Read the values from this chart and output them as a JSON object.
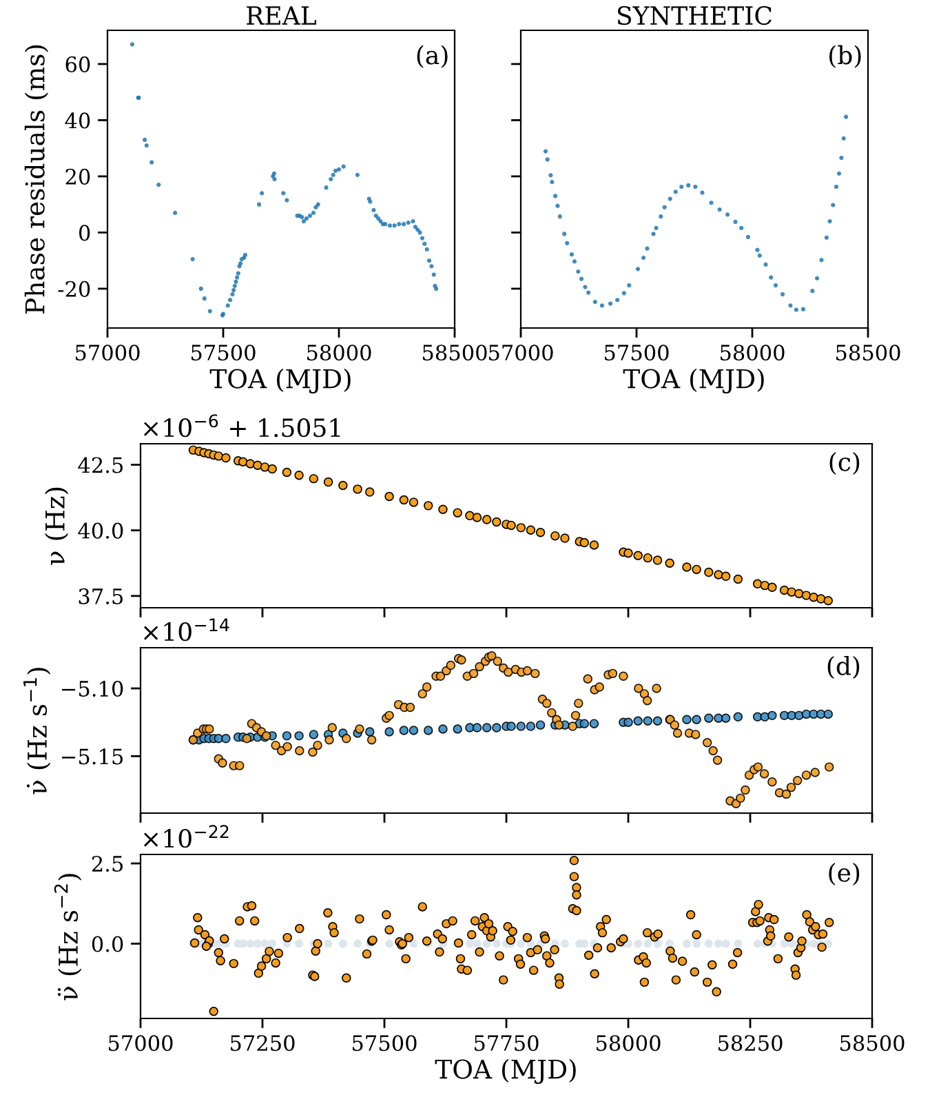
{
  "chart_data": [
    {
      "type": "scatter",
      "title": "REAL",
      "xlabel": "TOA (MJD)",
      "ylabel": "Phase residuals (ms)",
      "marker": "circle",
      "annotations": [
        "(a)"
      ],
      "xlim": [
        57000,
        58500
      ],
      "xticks": [
        57000,
        57500,
        58000,
        58500
      ],
      "ylim": [
        -34,
        72
      ],
      "yticks": [
        -20,
        0,
        20,
        40,
        60
      ],
      "series": [
        {
          "color": "#1f77b4",
          "x": [
            57107,
            57133,
            57135,
            57161,
            57169,
            57191,
            57221,
            57292,
            57368,
            57404,
            57419,
            57443,
            57497,
            57500,
            57520,
            57530,
            57540,
            57545,
            57550,
            57555,
            57560,
            57565,
            57570,
            57575,
            57580,
            57590,
            57595,
            57655,
            57667,
            57715,
            57720,
            57722,
            57760,
            57775,
            57820,
            57830,
            57840,
            57848,
            57860,
            57875,
            57890,
            57900,
            57910,
            57945,
            57965,
            57975,
            57985,
            58000,
            58020,
            58080,
            58130,
            58135,
            58150,
            58160,
            58170,
            58180,
            58190,
            58200,
            58220,
            58240,
            58260,
            58280,
            58300,
            58320,
            58330,
            58340,
            58350,
            58360,
            58370,
            58380,
            58390,
            58400,
            58410,
            58415,
            58420
          ],
          "values": [
            67,
            48,
            48,
            33,
            31,
            25,
            17,
            7,
            -9.5,
            -20,
            -23.5,
            -28,
            -29.5,
            -29,
            -26,
            -24,
            -22,
            -20.5,
            -19,
            -17.5,
            -16,
            -14.5,
            -12,
            -11,
            -9.5,
            -9,
            -8,
            10,
            14,
            20,
            21,
            19,
            14,
            11.5,
            6,
            6,
            5.5,
            4,
            5,
            6,
            7,
            9,
            10,
            16,
            19,
            20.5,
            22,
            22.5,
            23.5,
            20.5,
            12,
            11,
            8,
            6,
            5,
            4,
            3,
            3,
            2.5,
            2.5,
            3,
            3,
            3.5,
            4,
            2,
            1,
            0,
            -2,
            -4,
            -6,
            -10,
            -12,
            -15,
            -19,
            -20
          ]
        }
      ]
    },
    {
      "type": "scatter",
      "title": "SYNTHETIC",
      "xlabel": "TOA (MJD)",
      "marker": "circle",
      "annotations": [
        "(b)"
      ],
      "tick_labels": "x",
      "xlim": [
        57000,
        58500
      ],
      "xticks": [
        57000,
        57500,
        58000,
        58500
      ],
      "ylim": [
        -34,
        72
      ],
      "yticks": [
        -20,
        0,
        20,
        40,
        60
      ],
      "series": [
        {
          "color": "#1f77b4",
          "x": [
            57107,
            57115,
            57129,
            57135,
            57149,
            57159,
            57169,
            57188,
            57200,
            57220,
            57232,
            57248,
            57262,
            57278,
            57292,
            57321,
            57351,
            57387,
            57417,
            57446,
            57468,
            57506,
            57530,
            57546,
            57573,
            57585,
            57605,
            57621,
            57645,
            57669,
            57694,
            57724,
            57754,
            57784,
            57823,
            57859,
            57893,
            57927,
            57953,
            57982,
            58022,
            58032,
            58058,
            58081,
            58101,
            58131,
            58165,
            58190,
            58220,
            58260,
            58280,
            58299,
            58321,
            58335,
            58349,
            58363,
            58375,
            58385,
            58395,
            58405
          ],
          "values": [
            28.9,
            26,
            20.4,
            18,
            13,
            9.5,
            5.7,
            -0.5,
            -3.8,
            -7.8,
            -10.3,
            -13.9,
            -16.5,
            -19.4,
            -21.4,
            -24.7,
            -26,
            -25.3,
            -24,
            -21.6,
            -18.8,
            -13,
            -9,
            -5.7,
            -0.5,
            1.6,
            5.7,
            9,
            12,
            14.5,
            16.3,
            16.8,
            16.3,
            14.2,
            10.6,
            8.2,
            6.4,
            3.8,
            1.6,
            -1.6,
            -6.2,
            -8.2,
            -11.4,
            -16,
            -18.8,
            -22,
            -26,
            -27.5,
            -27.3,
            -20.8,
            -16.3,
            -9.8,
            -1.8,
            4,
            9.8,
            16.3,
            21,
            26.6,
            33.5,
            41.2
          ]
        }
      ]
    },
    {
      "type": "scatter",
      "ylabel": "ν (Hz)",
      "marker": "circle",
      "annotations": [
        "(c)",
        "×10$^{−6}$ + 1.5051"
      ],
      "tick_labels": "y",
      "xlim": [
        57000,
        58500
      ],
      "xticks": [
        57000,
        57250,
        57500,
        57750,
        58000,
        58250,
        58500
      ],
      "ylim": [
        37.05,
        43.3
      ],
      "yticks": [
        {
          "value": 37.5,
          "label": "37.5"
        },
        {
          "value": 40,
          "label": "40.0"
        },
        {
          "value": 42.5,
          "label": "42.5"
        }
      ],
      "series": [
        {
          "color": "#f5a01a",
          "x": [
            57108,
            57120,
            57130,
            57140,
            57150,
            57160,
            57175,
            57200,
            57210,
            57225,
            57240,
            57255,
            57270,
            57300,
            57325,
            57355,
            57385,
            57415,
            57445,
            57470,
            57510,
            57540,
            57560,
            57590,
            57620,
            57650,
            57675,
            57690,
            57710,
            57730,
            57750,
            57760,
            57780,
            57800,
            57820,
            57850,
            57870,
            57900,
            57910,
            57930,
            57990,
            58000,
            58020,
            58040,
            58060,
            58085,
            58120,
            58140,
            58165,
            58185,
            58200,
            58225,
            58265,
            58280,
            58295,
            58320,
            58335,
            58350,
            58365,
            58380,
            58395,
            58410
          ],
          "values": [
            43.06,
            43.01,
            42.96,
            42.92,
            42.87,
            42.83,
            42.76,
            42.65,
            42.61,
            42.54,
            42.48,
            42.41,
            42.34,
            42.21,
            42.1,
            41.97,
            41.84,
            41.71,
            41.57,
            41.46,
            41.29,
            41.16,
            41.07,
            40.94,
            40.8,
            40.67,
            40.56,
            40.49,
            40.41,
            40.32,
            40.23,
            40.19,
            40.1,
            40.01,
            39.92,
            39.79,
            39.7,
            39.57,
            39.53,
            39.44,
            39.17,
            39.13,
            39.04,
            38.95,
            38.86,
            38.75,
            38.6,
            38.51,
            38.4,
            38.31,
            38.25,
            38.14,
            37.96,
            37.9,
            37.83,
            37.72,
            37.65,
            37.59,
            37.52,
            37.45,
            37.39,
            37.32
          ]
        }
      ]
    },
    {
      "type": "scatter",
      "ylabel": "ν̇ (Hz s$^{−1}$)",
      "marker": "circle",
      "annotations": [
        "(d)",
        "×10$^{−14}$"
      ],
      "tick_labels": "y",
      "xlim": [
        57000,
        58500
      ],
      "xticks": [
        57000,
        57250,
        57500,
        57750,
        58000,
        58250,
        58500
      ],
      "ylim": [
        -5.192,
        -5.07
      ],
      "yticks": [
        {
          "value": -5.15,
          "label": "−5.15"
        },
        {
          "value": -5.1,
          "label": "−5.10"
        }
      ],
      "series": [
        {
          "color": "#3a8dc4",
          "x": [
            57108,
            57120,
            57130,
            57140,
            57150,
            57160,
            57175,
            57200,
            57210,
            57225,
            57240,
            57255,
            57270,
            57300,
            57325,
            57355,
            57385,
            57415,
            57445,
            57470,
            57510,
            57540,
            57560,
            57590,
            57620,
            57650,
            57675,
            57690,
            57710,
            57730,
            57750,
            57760,
            57780,
            57800,
            57820,
            57850,
            57870,
            57900,
            57910,
            57930,
            57990,
            58000,
            58020,
            58040,
            58060,
            58085,
            58120,
            58140,
            58165,
            58185,
            58200,
            58225,
            58265,
            58280,
            58295,
            58320,
            58335,
            58350,
            58365,
            58380,
            58395,
            58410
          ],
          "values": [
            -5.138,
            -5.138,
            -5.137,
            -5.137,
            -5.137,
            -5.137,
            -5.137,
            -5.136,
            -5.136,
            -5.136,
            -5.136,
            -5.136,
            -5.135,
            -5.135,
            -5.135,
            -5.134,
            -5.134,
            -5.133,
            -5.133,
            -5.132,
            -5.132,
            -5.131,
            -5.131,
            -5.131,
            -5.13,
            -5.13,
            -5.129,
            -5.129,
            -5.129,
            -5.129,
            -5.128,
            -5.128,
            -5.128,
            -5.128,
            -5.127,
            -5.127,
            -5.127,
            -5.126,
            -5.126,
            -5.126,
            -5.125,
            -5.125,
            -5.124,
            -5.124,
            -5.124,
            -5.123,
            -5.123,
            -5.123,
            -5.122,
            -5.122,
            -5.122,
            -5.121,
            -5.121,
            -5.121,
            -5.12,
            -5.12,
            -5.12,
            -5.12,
            -5.119,
            -5.119,
            -5.119,
            -5.119
          ]
        },
        {
          "color": "#f39c1e",
          "x": [
            57108,
            57117,
            57129,
            57135,
            57141,
            57160,
            57168,
            57191,
            57203,
            57218,
            57228,
            57238,
            57248,
            57258,
            57277,
            57289,
            57301,
            57326,
            57353,
            57363,
            57387,
            57393,
            57422,
            57449,
            57474,
            57504,
            57510,
            57529,
            57541,
            57553,
            57578,
            57587,
            57606,
            57615,
            57627,
            57636,
            57652,
            57658,
            57670,
            57683,
            57695,
            57707,
            57714,
            57720,
            57732,
            57744,
            57754,
            57769,
            57781,
            57793,
            57809,
            57824,
            57833,
            57843,
            57853,
            57858,
            57886,
            57892,
            57898,
            57917,
            57931,
            57941,
            57959,
            57968,
            57990,
            58021,
            58033,
            58039,
            58058,
            58086,
            58095,
            58101,
            58125,
            58138,
            58162,
            58174,
            58183,
            58209,
            58221,
            58230,
            58240,
            58248,
            58258,
            58266,
            58279,
            58295,
            58310,
            58324,
            58334,
            58347,
            58365,
            58383,
            58412
          ],
          "values": [
            -5.138,
            -5.133,
            -5.13,
            -5.13,
            -5.13,
            -5.152,
            -5.155,
            -5.157,
            -5.157,
            -5.137,
            -5.126,
            -5.129,
            -5.132,
            -5.135,
            -5.142,
            -5.146,
            -5.143,
            -5.146,
            -5.147,
            -5.142,
            -5.138,
            -5.129,
            -5.137,
            -5.13,
            -5.138,
            -5.122,
            -5.12,
            -5.112,
            -5.114,
            -5.114,
            -5.104,
            -5.099,
            -5.091,
            -5.091,
            -5.087,
            -5.083,
            -5.078,
            -5.079,
            -5.091,
            -5.089,
            -5.084,
            -5.08,
            -5.077,
            -5.076,
            -5.08,
            -5.085,
            -5.088,
            -5.086,
            -5.088,
            -5.087,
            -5.089,
            -5.108,
            -5.111,
            -5.118,
            -5.123,
            -5.127,
            -5.128,
            -5.12,
            -5.111,
            -5.093,
            -5.101,
            -5.099,
            -5.09,
            -5.089,
            -5.091,
            -5.1,
            -5.104,
            -5.109,
            -5.1,
            -5.123,
            -5.127,
            -5.133,
            -5.133,
            -5.134,
            -5.14,
            -5.146,
            -5.153,
            -5.183,
            -5.185,
            -5.181,
            -5.175,
            -5.164,
            -5.16,
            -5.158,
            -5.163,
            -5.169,
            -5.177,
            -5.178,
            -5.173,
            -5.168,
            -5.164,
            -5.162,
            -5.158
          ]
        }
      ]
    },
    {
      "type": "scatter",
      "xlabel": "TOA (MJD)",
      "ylabel": "ν̈ (Hz s$^{−2}$)",
      "marker": "circle",
      "annotations": [
        "(e)",
        "×10$^{−22}$"
      ],
      "xlim": [
        57000,
        58500
      ],
      "xticks": [
        57000,
        57250,
        57500,
        57750,
        58000,
        58250,
        58500
      ],
      "ylim": [
        -2.33,
        2.78
      ],
      "yticks": [
        {
          "value": 0,
          "label": "0.0"
        },
        {
          "value": 2.5,
          "label": "2.5"
        }
      ],
      "series": [
        {
          "color": "#dce5ec",
          "x": [
            57108,
            57120,
            57130,
            57150,
            57160,
            57175,
            57200,
            57210,
            57225,
            57240,
            57255,
            57270,
            57300,
            57325,
            57355,
            57385,
            57415,
            57445,
            57470,
            57510,
            57540,
            57560,
            57590,
            57620,
            57650,
            57675,
            57690,
            57710,
            57730,
            57750,
            57760,
            57780,
            57800,
            57820,
            57850,
            57870,
            57900,
            57910,
            57930,
            57990,
            58000,
            58020,
            58040,
            58060,
            58085,
            58120,
            58140,
            58165,
            58185,
            58200,
            58225,
            58265,
            58280,
            58295,
            58320,
            58335,
            58350,
            58365,
            58380,
            58395,
            58410
          ],
          "values": [
            0,
            0,
            0,
            0,
            0,
            0,
            0,
            0,
            0,
            0,
            0,
            0,
            0,
            0,
            0,
            0,
            0,
            0,
            0,
            0,
            0,
            0,
            0,
            0,
            0,
            0,
            0,
            0,
            0,
            0,
            0,
            0,
            0,
            0,
            0,
            0,
            0,
            0,
            0,
            0,
            0,
            0,
            0,
            0,
            0,
            0,
            0,
            0,
            0,
            0,
            0,
            0,
            0,
            0,
            0,
            0,
            0,
            0,
            0,
            0,
            0
          ]
        },
        {
          "color": "#f39c1e",
          "x": [
            57111,
            57117,
            57119,
            57132,
            57139,
            57141,
            57135,
            57150,
            57160,
            57164,
            57172,
            57191,
            57203,
            57219,
            57228,
            57234,
            57242,
            57248,
            57258,
            57264,
            57277,
            57283,
            57301,
            57326,
            57353,
            57357,
            57359,
            57363,
            57384,
            57394,
            57397,
            57422,
            57449,
            57464,
            57474,
            57476,
            57504,
            57510,
            57531,
            57535,
            57537,
            57544,
            57550,
            57578,
            57587,
            57609,
            57613,
            57619,
            57627,
            57640,
            57652,
            57656,
            57658,
            57670,
            57679,
            57686,
            57695,
            57701,
            57705,
            57710,
            57714,
            57718,
            57722,
            57736,
            57744,
            57753,
            57759,
            57763,
            57775,
            57779,
            57793,
            57800,
            57806,
            57814,
            57828,
            57830,
            57833,
            57839,
            57849,
            57858,
            57859,
            57889,
            57889,
            57894,
            57894,
            57886,
            57894,
            57919,
            57931,
            57937,
            57943,
            57947,
            57955,
            57965,
            57984,
            57990,
            58021,
            58031,
            58033,
            58037,
            58039,
            58054,
            58061,
            58086,
            58091,
            58098,
            58111,
            58128,
            58136,
            58140,
            58162,
            58172,
            58181,
            58214,
            58224,
            58255,
            58261,
            58264,
            58267,
            58270,
            58286,
            58288,
            58290,
            58292,
            58299,
            58307,
            58329,
            58342,
            58344,
            58348,
            58354,
            58356,
            58366,
            58372,
            58378,
            58384,
            58390,
            58397,
            58399,
            58412
          ],
          "values": [
            0.02,
            0.81,
            0.43,
            0.28,
            0,
            0.09,
            -0.08,
            -2.11,
            -0.28,
            -0.53,
            0.15,
            -0.62,
            0.71,
            1.15,
            1.18,
            0.71,
            -0.92,
            -0.7,
            -0.47,
            -0.24,
            -0.6,
            -0.3,
            0.19,
            0.47,
            -0.98,
            -1.02,
            -0.23,
            0,
            0.96,
            0.53,
            0.34,
            -1.07,
            0.77,
            -0.32,
            0.08,
            0.11,
            0.9,
            0.43,
            0.06,
            -0.04,
            0,
            -0.47,
            0.19,
            1.15,
            0.08,
            0.3,
            -0.26,
            0.15,
            0.62,
            0.71,
            0.02,
            -0.47,
            -0.79,
            -0.83,
            0.28,
            0.71,
            -0.26,
            0.53,
            0.81,
            0.4,
            0.62,
            0.21,
            0.4,
            -0.38,
            -1.13,
            0.53,
            0.11,
            0.38,
            -0.47,
            -0.64,
            0.19,
            -0.28,
            -0.83,
            -0.19,
            0.24,
            0.15,
            -0.38,
            -0.6,
            -0.19,
            -1.07,
            -1.26,
            2.59,
            2.09,
            1.75,
            1.52,
            1.09,
            1.03,
            -0.36,
            -0.94,
            -0.13,
            0.53,
            0.34,
            0.75,
            -0.13,
            0.06,
            0.15,
            -0.51,
            -0.41,
            -1.2,
            -0.6,
            0.34,
            0.21,
            0.3,
            -0.23,
            -0.45,
            -1.13,
            -0.55,
            0.9,
            -0.88,
            0.28,
            -1.2,
            -0.66,
            -1.5,
            -0.64,
            -0.28,
            0.66,
            1,
            0.66,
            1.22,
            0.71,
            0.08,
            0.81,
            0.43,
            0.24,
            0.75,
            -0.47,
            0.21,
            -0.79,
            -0.98,
            -0.28,
            -0.13,
            0.08,
            0.9,
            0.68,
            0.43,
            0.53,
            0.28,
            -0.11,
            0.3,
            0.66
          ]
        }
      ]
    }
  ]
}
